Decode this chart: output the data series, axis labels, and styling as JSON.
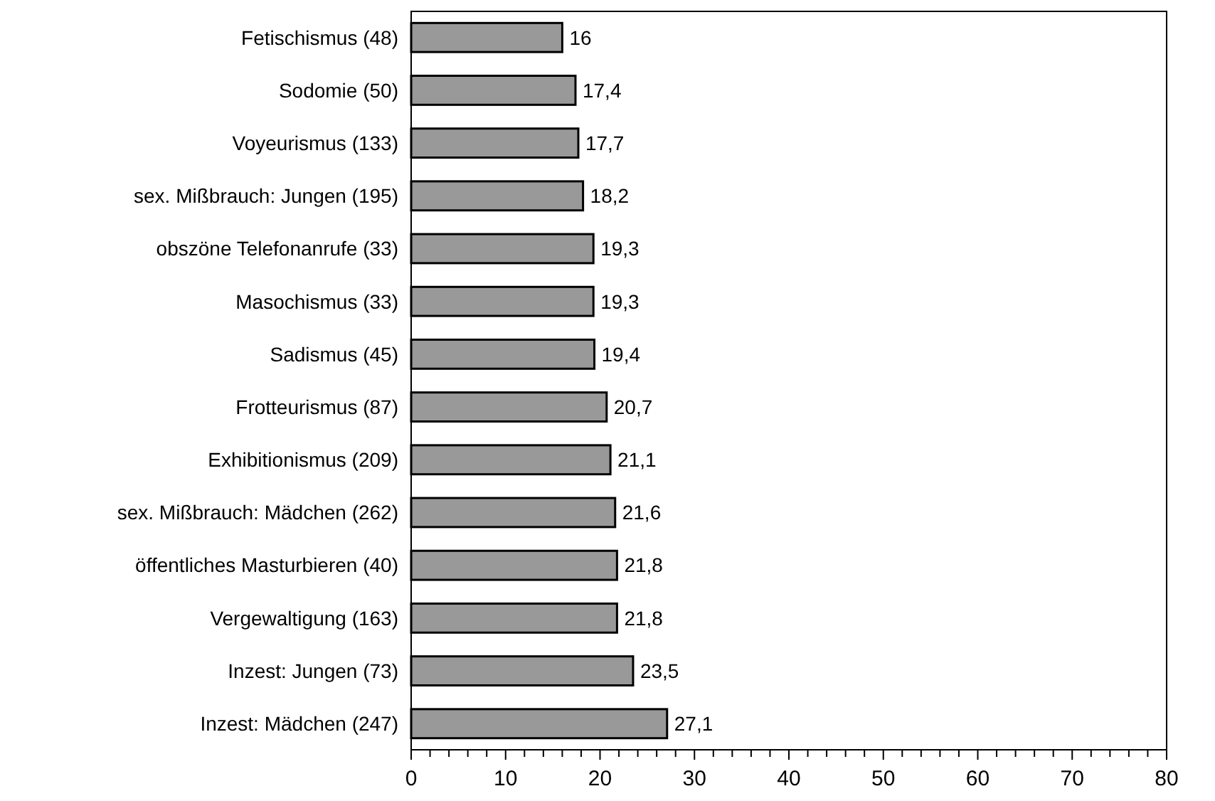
{
  "chart_data": {
    "type": "bar",
    "orientation": "horizontal",
    "categories": [
      "Fetischismus (48)",
      "Sodomie (50)",
      "Voyeurismus (133)",
      "sex. Mißbrauch: Jungen (195)",
      "obszöne Telefonanrufe (33)",
      "Masochismus (33)",
      "Sadismus (45)",
      "Frotteurismus (87)",
      "Exhibitionismus (209)",
      "sex. Mißbrauch: Mädchen (262)",
      "öffentliches Masturbieren (40)",
      "Vergewaltigung (163)",
      "Inzest: Jungen (73)",
      "Inzest: Mädchen (247)"
    ],
    "values": [
      16,
      17.4,
      17.7,
      18.2,
      19.3,
      19.3,
      19.4,
      20.7,
      21.1,
      21.6,
      21.8,
      21.8,
      23.5,
      27.1
    ],
    "value_labels": [
      "16",
      "17,4",
      "17,7",
      "18,2",
      "19,3",
      "19,3",
      "19,4",
      "20,7",
      "21,1",
      "21,6",
      "21,8",
      "21,8",
      "23,5",
      "27,1"
    ],
    "color": "#999999",
    "xlim": [
      0,
      80
    ],
    "xticks": [
      0,
      {
        "value": 2,
        "label": null
      },
      {
        "value": 4,
        "label": null
      },
      {
        "value": 6,
        "label": null
      },
      {
        "value": 8,
        "label": null
      },
      10,
      {
        "value": 12,
        "label": null
      },
      {
        "value": 14,
        "label": null
      },
      {
        "value": 16,
        "label": null
      },
      {
        "value": 18,
        "label": null
      },
      20,
      {
        "value": 22,
        "label": null
      },
      {
        "value": 24,
        "label": null
      },
      {
        "value": 26,
        "label": null
      },
      {
        "value": 28,
        "label": null
      },
      30,
      {
        "value": 32,
        "label": null
      },
      {
        "value": 34,
        "label": null
      },
      {
        "value": 36,
        "label": null
      },
      {
        "value": 38,
        "label": null
      },
      40,
      {
        "value": 42,
        "label": null
      },
      {
        "value": 44,
        "label": null
      },
      {
        "value": 46,
        "label": null
      },
      {
        "value": 48,
        "label": null
      },
      50,
      {
        "value": 52,
        "label": null
      },
      {
        "value": 54,
        "label": null
      },
      {
        "value": 56,
        "label": null
      },
      {
        "value": 58,
        "label": null
      },
      60,
      {
        "value": 62,
        "label": null
      },
      {
        "value": 64,
        "label": null
      },
      {
        "value": 66,
        "label": null
      },
      {
        "value": 68,
        "label": null
      },
      70,
      {
        "value": 72,
        "label": null
      },
      {
        "value": 74,
        "label": null
      },
      {
        "value": 76,
        "label": null
      },
      {
        "value": 78,
        "label": null
      },
      80
    ],
    "grid": false
  }
}
